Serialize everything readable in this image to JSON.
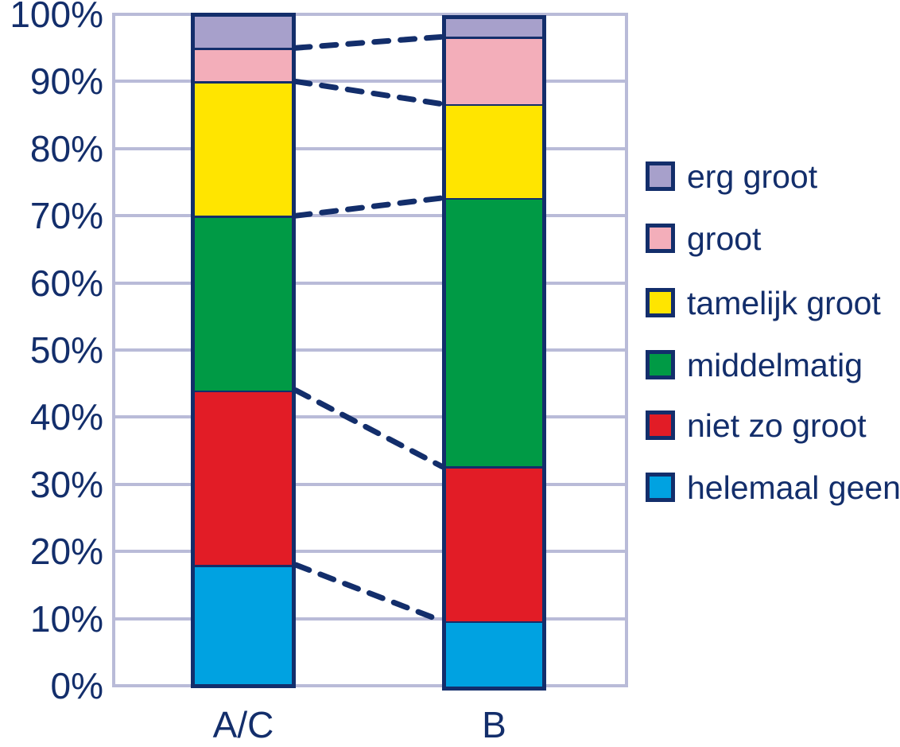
{
  "chart_data": {
    "type": "bar",
    "variant": "100-percent-stacked-columns",
    "title": "",
    "xlabel": "",
    "ylabel": "",
    "categories": [
      "A/C",
      "B"
    ],
    "stack_order": "bottom-to-top",
    "series": [
      {
        "name": "helemaal geen",
        "color": "#00a2e1",
        "values": [
          18,
          10
        ]
      },
      {
        "name": "niet zo groot",
        "color": "#e21c26",
        "values": [
          26,
          23
        ]
      },
      {
        "name": "middelmatig",
        "color": "#009a45",
        "values": [
          26,
          40
        ]
      },
      {
        "name": "tamelijk groot",
        "color": "#ffe500",
        "values": [
          20,
          14
        ]
      },
      {
        "name": "groot",
        "color": "#f3aeba",
        "values": [
          5,
          10
        ]
      },
      {
        "name": "erg groot",
        "color": "#a7a0cb",
        "values": [
          5,
          3
        ]
      }
    ],
    "ylim": [
      0,
      100
    ],
    "yticks": [
      "0%",
      "10%",
      "20%",
      "30%",
      "40%",
      "50%",
      "60%",
      "70%",
      "80%",
      "90%",
      "100%"
    ],
    "grid": "horizontal",
    "legend": {
      "position": "right",
      "items": [
        "erg groot",
        "groot",
        "tamelijk groot",
        "middelmatig",
        "niet zo groot",
        "helemaal geen"
      ]
    },
    "connectors": {
      "style": "dashed",
      "color": "#132e6b",
      "description": "dashed lines linking the segment boundaries of column A/C to column B"
    }
  },
  "colors": {
    "text": "#132e6b",
    "gridline": "#b9bbd8",
    "bar_border": "#132e6b",
    "background": "#ffffff"
  }
}
